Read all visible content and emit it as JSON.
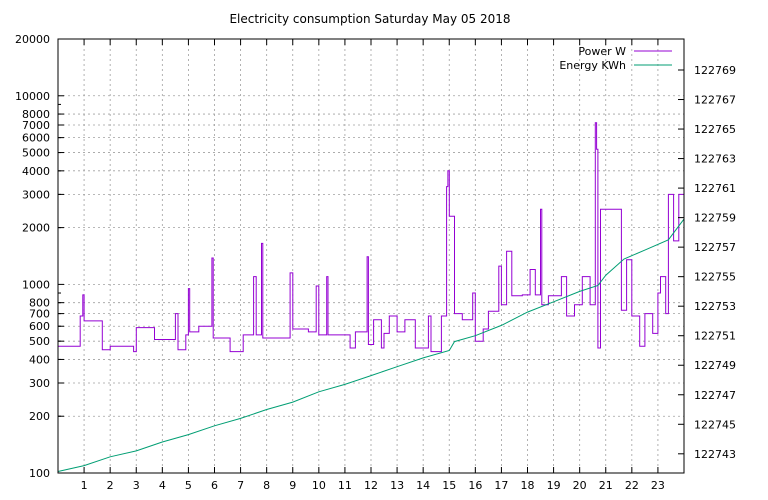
{
  "chart_data": {
    "type": "line",
    "title": "Electricity consumption Saturday May 05 2018",
    "x_ticks": [
      "1",
      "2",
      "3",
      "4",
      "5",
      "6",
      "7",
      "8",
      "9",
      "10",
      "11",
      "12",
      "13",
      "14",
      "15",
      "16",
      "17",
      "18",
      "19",
      "20",
      "21",
      "22",
      "23"
    ],
    "xlim": [
      0,
      24
    ],
    "y_left_scale": "log",
    "ylim_left": [
      100,
      20000
    ],
    "y_left_ticks": [
      "100",
      "200",
      "300",
      "400",
      "500",
      "600",
      "700",
      "800",
      "1000",
      "2000",
      "3000",
      "4000",
      "5000",
      "6000",
      "7000",
      "8000",
      "10000",
      "20000"
    ],
    "ylim_right": [
      122741.7,
      122771.1
    ],
    "y_right_ticks": [
      "122743",
      "122745",
      "122747",
      "122749",
      "122751",
      "122753",
      "122755",
      "122757",
      "122759",
      "122761",
      "122763",
      "122765",
      "122767",
      "122769"
    ],
    "grid": true,
    "legend_position": "top-right",
    "series": [
      {
        "name": "Power W",
        "axis": "left",
        "color": "#9400d3",
        "step": true,
        "points": [
          [
            0.0,
            470
          ],
          [
            0.85,
            470
          ],
          [
            0.85,
            680
          ],
          [
            0.95,
            680
          ],
          [
            0.95,
            880
          ],
          [
            1.0,
            880
          ],
          [
            1.0,
            640
          ],
          [
            1.7,
            640
          ],
          [
            1.7,
            450
          ],
          [
            2.0,
            450
          ],
          [
            2.0,
            470
          ],
          [
            2.9,
            470
          ],
          [
            2.9,
            440
          ],
          [
            3.0,
            440
          ],
          [
            3.0,
            590
          ],
          [
            3.7,
            590
          ],
          [
            3.7,
            510
          ],
          [
            4.5,
            510
          ],
          [
            4.5,
            700
          ],
          [
            4.6,
            700
          ],
          [
            4.6,
            450
          ],
          [
            4.9,
            450
          ],
          [
            4.9,
            540
          ],
          [
            5.0,
            540
          ],
          [
            5.0,
            950
          ],
          [
            5.05,
            950
          ],
          [
            5.05,
            560
          ],
          [
            5.4,
            560
          ],
          [
            5.4,
            600
          ],
          [
            5.9,
            600
          ],
          [
            5.9,
            1380
          ],
          [
            5.95,
            1380
          ],
          [
            5.95,
            520
          ],
          [
            6.6,
            520
          ],
          [
            6.6,
            440
          ],
          [
            7.1,
            440
          ],
          [
            7.1,
            540
          ],
          [
            7.5,
            540
          ],
          [
            7.5,
            1100
          ],
          [
            7.6,
            1100
          ],
          [
            7.6,
            540
          ],
          [
            7.8,
            540
          ],
          [
            7.8,
            1650
          ],
          [
            7.85,
            1650
          ],
          [
            7.85,
            520
          ],
          [
            8.9,
            520
          ],
          [
            8.9,
            1150
          ],
          [
            9.0,
            1150
          ],
          [
            9.0,
            580
          ],
          [
            9.6,
            580
          ],
          [
            9.6,
            560
          ],
          [
            9.9,
            560
          ],
          [
            9.9,
            980
          ],
          [
            10.0,
            980
          ],
          [
            10.0,
            540
          ],
          [
            10.3,
            540
          ],
          [
            10.3,
            1100
          ],
          [
            10.35,
            1100
          ],
          [
            10.35,
            540
          ],
          [
            11.2,
            540
          ],
          [
            11.2,
            460
          ],
          [
            11.4,
            460
          ],
          [
            11.4,
            560
          ],
          [
            11.85,
            560
          ],
          [
            11.85,
            1400
          ],
          [
            11.9,
            1400
          ],
          [
            11.9,
            480
          ],
          [
            12.1,
            480
          ],
          [
            12.1,
            650
          ],
          [
            12.4,
            650
          ],
          [
            12.4,
            460
          ],
          [
            12.5,
            460
          ],
          [
            12.5,
            550
          ],
          [
            12.7,
            550
          ],
          [
            12.7,
            680
          ],
          [
            13.0,
            680
          ],
          [
            13.0,
            560
          ],
          [
            13.3,
            560
          ],
          [
            13.3,
            650
          ],
          [
            13.7,
            650
          ],
          [
            13.7,
            460
          ],
          [
            14.2,
            460
          ],
          [
            14.2,
            680
          ],
          [
            14.3,
            680
          ],
          [
            14.3,
            440
          ],
          [
            14.7,
            440
          ],
          [
            14.7,
            680
          ],
          [
            14.9,
            680
          ],
          [
            14.9,
            3300
          ],
          [
            14.95,
            3300
          ],
          [
            14.95,
            4000
          ],
          [
            15.0,
            4000
          ],
          [
            15.0,
            2300
          ],
          [
            15.2,
            2300
          ],
          [
            15.2,
            700
          ],
          [
            15.5,
            700
          ],
          [
            15.5,
            650
          ],
          [
            15.9,
            650
          ],
          [
            15.9,
            900
          ],
          [
            16.0,
            900
          ],
          [
            16.0,
            500
          ],
          [
            16.3,
            500
          ],
          [
            16.3,
            580
          ],
          [
            16.5,
            580
          ],
          [
            16.5,
            720
          ],
          [
            16.9,
            720
          ],
          [
            16.9,
            1250
          ],
          [
            17.0,
            1250
          ],
          [
            17.0,
            780
          ],
          [
            17.2,
            780
          ],
          [
            17.2,
            1500
          ],
          [
            17.4,
            1500
          ],
          [
            17.4,
            870
          ],
          [
            17.8,
            870
          ],
          [
            17.8,
            880
          ],
          [
            18.1,
            880
          ],
          [
            18.1,
            1200
          ],
          [
            18.3,
            1200
          ],
          [
            18.3,
            880
          ],
          [
            18.5,
            880
          ],
          [
            18.5,
            2500
          ],
          [
            18.55,
            2500
          ],
          [
            18.55,
            780
          ],
          [
            18.8,
            780
          ],
          [
            18.8,
            870
          ],
          [
            19.3,
            870
          ],
          [
            19.3,
            1100
          ],
          [
            19.5,
            1100
          ],
          [
            19.5,
            680
          ],
          [
            19.8,
            680
          ],
          [
            19.8,
            780
          ],
          [
            20.1,
            780
          ],
          [
            20.1,
            1100
          ],
          [
            20.4,
            1100
          ],
          [
            20.4,
            780
          ],
          [
            20.6,
            780
          ],
          [
            20.6,
            7200
          ],
          [
            20.65,
            7200
          ],
          [
            20.65,
            5200
          ],
          [
            20.7,
            5200
          ],
          [
            20.7,
            460
          ],
          [
            20.8,
            460
          ],
          [
            20.8,
            2500
          ],
          [
            21.6,
            2500
          ],
          [
            21.6,
            730
          ],
          [
            21.8,
            730
          ],
          [
            21.8,
            1350
          ],
          [
            22.0,
            1350
          ],
          [
            22.0,
            680
          ],
          [
            22.3,
            680
          ],
          [
            22.3,
            470
          ],
          [
            22.5,
            470
          ],
          [
            22.5,
            700
          ],
          [
            22.8,
            700
          ],
          [
            22.8,
            550
          ],
          [
            23.0,
            550
          ],
          [
            23.0,
            900
          ],
          [
            23.1,
            900
          ],
          [
            23.1,
            1100
          ],
          [
            23.3,
            1100
          ],
          [
            23.3,
            700
          ],
          [
            23.4,
            700
          ],
          [
            23.4,
            3000
          ],
          [
            23.6,
            3000
          ],
          [
            23.6,
            1700
          ],
          [
            23.8,
            1700
          ],
          [
            23.8,
            3000
          ],
          [
            24.0,
            3000
          ]
        ]
      },
      {
        "name": "Energy KWh",
        "axis": "right",
        "color": "#009e73",
        "step": false,
        "points": [
          [
            0.0,
            122741.8
          ],
          [
            1.0,
            122742.2
          ],
          [
            2.0,
            122742.8
          ],
          [
            3.0,
            122743.2
          ],
          [
            4.0,
            122743.8
          ],
          [
            5.0,
            122744.3
          ],
          [
            6.0,
            122744.9
          ],
          [
            7.0,
            122745.4
          ],
          [
            8.0,
            122746.0
          ],
          [
            9.0,
            122746.5
          ],
          [
            10.0,
            122747.2
          ],
          [
            11.0,
            122747.7
          ],
          [
            12.0,
            122748.3
          ],
          [
            13.0,
            122748.9
          ],
          [
            14.0,
            122749.5
          ],
          [
            15.0,
            122750.0
          ],
          [
            15.2,
            122750.6
          ],
          [
            16.0,
            122751.0
          ],
          [
            17.0,
            122751.7
          ],
          [
            18.0,
            122752.6
          ],
          [
            19.0,
            122753.3
          ],
          [
            20.0,
            122754.0
          ],
          [
            20.7,
            122754.4
          ],
          [
            21.0,
            122755.1
          ],
          [
            21.7,
            122756.2
          ],
          [
            22.5,
            122756.8
          ],
          [
            23.4,
            122757.5
          ],
          [
            24.0,
            122758.9
          ]
        ]
      }
    ]
  }
}
